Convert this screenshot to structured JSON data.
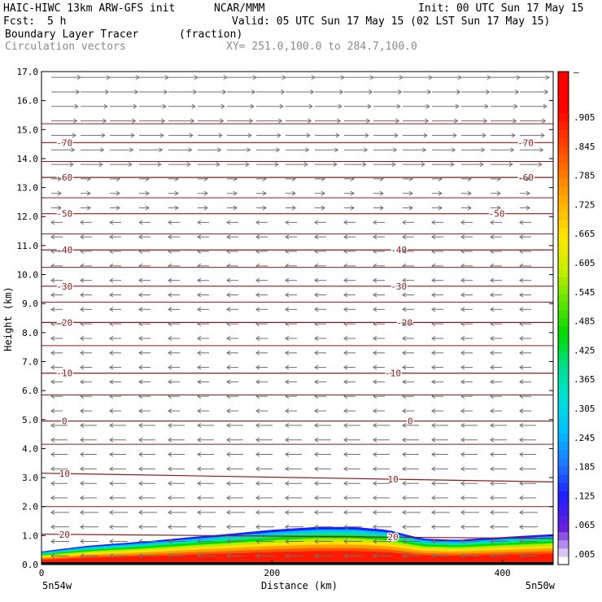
{
  "header": {
    "title": "HAIC-HIWC 13km ARW-GFS init",
    "org": "NCAR/MMM",
    "init": "Init: 00 UTC Sun 17 May 15",
    "fcst_label": "Fcst:",
    "fcst_value": "5 h",
    "valid": "Valid: 05 UTC Sun 17 May 15 (02 LST Sun 17 May 15)",
    "field": "Boundary Layer Tracer",
    "field_units": "(fraction)",
    "vector_label": "Circulation vectors",
    "xsec": "XY= 251.0,100.0 to 284.7,100.0"
  },
  "colors": {
    "isotherm": "#8b1a1a",
    "arrow": "#707070",
    "text_gray": "#8a8a8a",
    "palette": [
      "#ffffff",
      "#8a2be2",
      "#1e1eff",
      "#1e90ff",
      "#00bfff",
      "#00e5d0",
      "#00e08a",
      "#00e000",
      "#7fe800",
      "#e6f000",
      "#ffd200",
      "#ffa500",
      "#ff6a00",
      "#ff2a00",
      "#ff0000"
    ]
  },
  "chart_data": {
    "type": "cross-section",
    "ylabel": "Height (km)",
    "xlabel": "Distance (km)",
    "x_left_label": "5n54w",
    "x_right_label": "5n50w",
    "xlim": [
      0,
      444
    ],
    "ylim": [
      0,
      17
    ],
    "x_ticks": [
      "0",
      "200",
      "400"
    ],
    "y_ticks": [
      "0.0",
      "1.0",
      "2.0",
      "3.0",
      "4.0",
      "5.0",
      "6.0",
      "7.0",
      "8.0",
      "9.0",
      "10.0",
      "11.0",
      "12.0",
      "13.0",
      "14.0",
      "15.0",
      "16.0",
      "17.0"
    ],
    "colorbar_labels": [
      ".005",
      ".065",
      ".125",
      ".185",
      ".245",
      ".305",
      ".365",
      ".425",
      ".485",
      ".545",
      ".605",
      ".665",
      ".725",
      ".785",
      ".845",
      ".905",
      "–"
    ],
    "isotherms": [
      {
        "label": "-70",
        "y_left": 14.55,
        "y_right": 14.55,
        "label_x": [
          20,
          420
        ]
      },
      {
        "label": "-60",
        "y_left": 13.35,
        "y_right": 13.35,
        "label_x": [
          20,
          420
        ]
      },
      {
        "label": "-50",
        "y_left": 12.1,
        "y_right": 12.1,
        "label_x": [
          20,
          395
        ]
      },
      {
        "label": "-40",
        "y_left": 10.85,
        "y_right": 10.85,
        "label_x": [
          20,
          310
        ]
      },
      {
        "label": "-30",
        "y_left": 9.6,
        "y_right": 9.6,
        "label_x": [
          20,
          310
        ]
      },
      {
        "label": "-20",
        "y_left": 8.35,
        "y_right": 8.35,
        "label_x": [
          20,
          315
        ]
      },
      {
        "label": "-10",
        "y_left": 6.6,
        "y_right": 6.6,
        "label_x": [
          20,
          305
        ]
      },
      {
        "label": "0",
        "y_left": 4.95,
        "y_right": 4.95,
        "label_x": [
          20,
          320
        ]
      },
      {
        "label": "10",
        "y_left": 3.15,
        "y_right": 2.85,
        "label_x": [
          20,
          305
        ]
      },
      {
        "label": "20",
        "y_left": 1.05,
        "y_right": 0.9,
        "label_x": [
          20,
          305
        ]
      }
    ],
    "tracer_top": {
      "x": [
        0,
        40,
        90,
        130,
        160,
        200,
        240,
        270,
        300,
        330,
        360,
        400,
        444
      ],
      "y": [
        0.45,
        0.65,
        0.8,
        0.95,
        1.05,
        1.2,
        1.3,
        1.3,
        1.2,
        0.9,
        0.85,
        0.95,
        1.05
      ]
    }
  }
}
